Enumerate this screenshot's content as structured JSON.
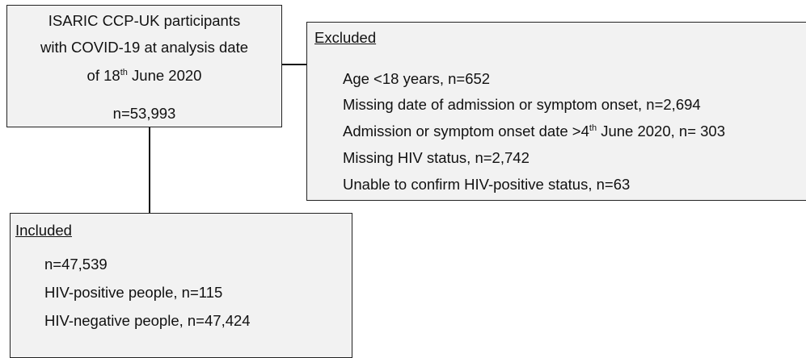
{
  "source": {
    "lines": [
      "ISARIC CCP-UK participants",
      "with COVID-19 at analysis date",
      {
        "before": "of 18",
        "sup": "th",
        "after": " June 2020"
      }
    ],
    "count": "n=53,993"
  },
  "excluded": {
    "heading": "Excluded",
    "items": [
      "Age <18 years, n=652",
      "Missing date of admission or symptom onset, n=2,694",
      {
        "before": "Admission or symptom onset date >4",
        "sup": "th",
        "after": " June 2020, n= 303"
      },
      "Missing HIV status, n=2,742",
      "Unable to confirm HIV-positive status, n=63"
    ]
  },
  "included": {
    "heading": "Included",
    "items": [
      "n=47,539",
      "HIV-positive people, n=115",
      "HIV-negative people, n=47,424"
    ]
  }
}
